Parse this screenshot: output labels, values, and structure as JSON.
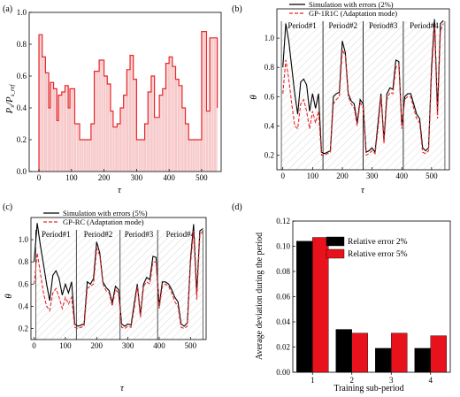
{
  "panels": {
    "a": {
      "tag": "(a)",
      "xlabel": "τ",
      "ylabel": "P",
      "ylabel_sub1": "s",
      "ylabel_mid": "/P",
      "ylabel_sub2": "s_ref"
    },
    "b": {
      "tag": "(b)",
      "xlabel": "τ",
      "ylabel": "θ"
    },
    "c": {
      "tag": "(c)",
      "xlabel": "τ",
      "ylabel": "θ"
    },
    "d": {
      "tag": "(d)",
      "xlabel": "Training sub-period",
      "ylabel": "Average deviation during the period"
    }
  },
  "chart_data": [
    {
      "id": "a",
      "type": "area",
      "xlim": [
        -30,
        560
      ],
      "ylim": [
        0.0,
        1.0
      ],
      "xticks": [
        0,
        100,
        200,
        300,
        400,
        500
      ],
      "yticks": [
        0.0,
        0.2,
        0.4,
        0.6,
        0.8,
        1.0
      ],
      "colors": {
        "line": "#e8282b",
        "fill": "#f7c9ca"
      },
      "steps": [
        [
          0,
          0.86
        ],
        [
          10,
          0.72
        ],
        [
          20,
          0.62
        ],
        [
          30,
          0.4
        ],
        [
          35,
          0.56
        ],
        [
          45,
          0.52
        ],
        [
          55,
          0.32
        ],
        [
          60,
          0.48
        ],
        [
          70,
          0.5
        ],
        [
          80,
          0.54
        ],
        [
          90,
          0.4
        ],
        [
          95,
          0.52
        ],
        [
          110,
          0.3
        ],
        [
          125,
          0.2
        ],
        [
          160,
          0.3
        ],
        [
          170,
          0.63
        ],
        [
          185,
          0.7
        ],
        [
          200,
          0.6
        ],
        [
          210,
          0.55
        ],
        [
          220,
          0.38
        ],
        [
          228,
          0.28
        ],
        [
          240,
          0.3
        ],
        [
          250,
          0.4
        ],
        [
          260,
          0.48
        ],
        [
          270,
          0.64
        ],
        [
          280,
          0.73
        ],
        [
          290,
          0.58
        ],
        [
          300,
          0.2
        ],
        [
          325,
          0.3
        ],
        [
          335,
          0.5
        ],
        [
          345,
          0.6
        ],
        [
          355,
          0.34
        ],
        [
          370,
          0.48
        ],
        [
          380,
          0.52
        ],
        [
          390,
          0.68
        ],
        [
          400,
          0.72
        ],
        [
          410,
          0.66
        ],
        [
          420,
          0.58
        ],
        [
          430,
          0.54
        ],
        [
          440,
          0.4
        ],
        [
          450,
          0.3
        ],
        [
          460,
          0.2
        ],
        [
          500,
          0.88
        ],
        [
          515,
          0.38
        ],
        [
          525,
          0.84
        ],
        [
          545,
          0.84
        ]
      ]
    },
    {
      "id": "b",
      "type": "line",
      "xlim": [
        -20,
        560
      ],
      "ylim": [
        0.1,
        1.2
      ],
      "xticks": [
        0,
        100,
        200,
        300,
        400,
        500
      ],
      "yticks": [
        0.2,
        0.4,
        0.6,
        0.8,
        1.0
      ],
      "periods": [
        {
          "label": "Period#1",
          "start": -5,
          "end": 135
        },
        {
          "label": "Period#2",
          "start": 135,
          "end": 270
        },
        {
          "label": "Period#3",
          "start": 270,
          "end": 405
        },
        {
          "label": "Period#4",
          "start": 405,
          "end": 545
        }
      ],
      "series": [
        {
          "name": "Simulation with errors (2%)",
          "color": "#000000",
          "dash": false,
          "x": [
            0,
            10,
            20,
            30,
            40,
            50,
            60,
            70,
            80,
            90,
            100,
            110,
            120,
            130,
            140,
            150,
            160,
            170,
            180,
            190,
            200,
            210,
            220,
            230,
            240,
            250,
            260,
            270,
            280,
            290,
            300,
            310,
            320,
            330,
            340,
            350,
            360,
            370,
            380,
            390,
            400,
            410,
            420,
            430,
            440,
            450,
            460,
            470,
            480,
            490,
            500,
            510,
            520,
            530,
            540
          ],
          "y": [
            0.8,
            1.1,
            0.98,
            0.8,
            0.62,
            0.48,
            0.7,
            0.72,
            0.68,
            0.5,
            0.62,
            0.52,
            0.62,
            0.22,
            0.21,
            0.22,
            0.23,
            0.6,
            0.62,
            0.63,
            0.98,
            0.9,
            0.62,
            0.57,
            0.55,
            0.42,
            0.58,
            0.55,
            0.22,
            0.23,
            0.25,
            0.22,
            0.42,
            0.62,
            0.3,
            0.62,
            0.66,
            0.65,
            0.85,
            0.84,
            0.4,
            0.6,
            0.62,
            0.62,
            0.55,
            0.48,
            0.45,
            0.25,
            0.23,
            0.25,
            0.8,
            1.13,
            0.5,
            1.1,
            1.12
          ]
        },
        {
          "name": "GP-1R1C (Adaptation mode)",
          "color": "#e8282b",
          "dash": true,
          "x": [
            0,
            10,
            20,
            30,
            40,
            50,
            60,
            70,
            80,
            90,
            100,
            110,
            120,
            130,
            140,
            150,
            160,
            170,
            180,
            190,
            200,
            210,
            220,
            230,
            240,
            250,
            260,
            270,
            280,
            290,
            300,
            310,
            320,
            330,
            340,
            350,
            360,
            370,
            380,
            390,
            400,
            410,
            420,
            430,
            440,
            450,
            460,
            470,
            480,
            490,
            500,
            510,
            520,
            530,
            540
          ],
          "y": [
            0.62,
            0.85,
            0.72,
            0.55,
            0.4,
            0.38,
            0.55,
            0.58,
            0.5,
            0.38,
            0.5,
            0.42,
            0.5,
            0.2,
            0.2,
            0.21,
            0.22,
            0.55,
            0.58,
            0.6,
            0.92,
            0.88,
            0.6,
            0.55,
            0.52,
            0.4,
            0.56,
            0.52,
            0.2,
            0.21,
            0.23,
            0.21,
            0.38,
            0.6,
            0.28,
            0.58,
            0.63,
            0.62,
            0.8,
            0.82,
            0.38,
            0.58,
            0.6,
            0.6,
            0.52,
            0.45,
            0.42,
            0.22,
            0.21,
            0.23,
            0.75,
            1.08,
            0.45,
            1.05,
            1.1
          ]
        }
      ]
    },
    {
      "id": "c",
      "type": "line",
      "xlim": [
        -10,
        550
      ],
      "ylim": [
        0.1,
        1.2
      ],
      "xticks": [
        0,
        100,
        200,
        300,
        400,
        500
      ],
      "yticks": [
        0.2,
        0.4,
        0.6,
        0.8,
        1.0
      ],
      "periods": [
        {
          "label": "Period#1",
          "start": 5,
          "end": 135
        },
        {
          "label": "Period#2",
          "start": 135,
          "end": 275
        },
        {
          "label": "Period#3",
          "start": 275,
          "end": 395
        },
        {
          "label": "Period#4",
          "start": 395,
          "end": 540
        }
      ],
      "series": [
        {
          "name": "Simulation with errors (5%)",
          "color": "#000000",
          "dash": false,
          "x": [
            0,
            10,
            20,
            30,
            40,
            50,
            60,
            70,
            80,
            90,
            100,
            110,
            120,
            130,
            140,
            150,
            160,
            170,
            180,
            190,
            200,
            210,
            220,
            230,
            240,
            250,
            260,
            270,
            280,
            290,
            300,
            310,
            320,
            330,
            340,
            350,
            360,
            370,
            380,
            390,
            400,
            410,
            420,
            430,
            440,
            450,
            460,
            470,
            480,
            490,
            500,
            510,
            520,
            530,
            540
          ],
          "y": [
            0.8,
            1.15,
            0.95,
            0.78,
            0.6,
            0.45,
            0.68,
            0.72,
            0.65,
            0.5,
            0.6,
            0.52,
            0.62,
            0.24,
            0.22,
            0.23,
            0.24,
            0.62,
            0.6,
            0.65,
            0.98,
            0.88,
            0.62,
            0.57,
            0.54,
            0.43,
            0.58,
            0.55,
            0.24,
            0.22,
            0.24,
            0.23,
            0.42,
            0.6,
            0.32,
            0.6,
            0.66,
            0.64,
            0.85,
            0.84,
            0.4,
            0.62,
            0.62,
            0.6,
            0.55,
            0.48,
            0.44,
            0.24,
            0.22,
            0.25,
            0.82,
            1.14,
            0.52,
            1.08,
            1.1
          ]
        },
        {
          "name": "GP-RC (Adaptation mode)",
          "color": "#e8282b",
          "dash": true,
          "x": [
            0,
            10,
            20,
            30,
            40,
            50,
            60,
            70,
            80,
            90,
            100,
            110,
            120,
            130,
            140,
            150,
            160,
            170,
            180,
            190,
            200,
            210,
            220,
            230,
            240,
            250,
            260,
            270,
            280,
            290,
            300,
            310,
            320,
            330,
            340,
            350,
            360,
            370,
            380,
            390,
            400,
            410,
            420,
            430,
            440,
            450,
            460,
            470,
            480,
            490,
            500,
            510,
            520,
            530,
            540
          ],
          "y": [
            0.6,
            0.88,
            0.7,
            0.52,
            0.4,
            0.36,
            0.52,
            0.56,
            0.48,
            0.38,
            0.48,
            0.42,
            0.48,
            0.21,
            0.2,
            0.21,
            0.22,
            0.56,
            0.58,
            0.6,
            0.92,
            0.86,
            0.6,
            0.54,
            0.52,
            0.4,
            0.55,
            0.52,
            0.21,
            0.2,
            0.22,
            0.21,
            0.38,
            0.58,
            0.3,
            0.58,
            0.62,
            0.6,
            0.8,
            0.8,
            0.38,
            0.58,
            0.6,
            0.58,
            0.52,
            0.44,
            0.4,
            0.21,
            0.2,
            0.22,
            0.78,
            1.08,
            0.46,
            1.04,
            1.08
          ]
        }
      ]
    },
    {
      "id": "d",
      "type": "bar",
      "categories": [
        "1",
        "2",
        "3",
        "4"
      ],
      "ylim": [
        0.0,
        0.12
      ],
      "yticks": [
        0.0,
        0.02,
        0.04,
        0.06,
        0.08,
        0.1,
        0.12
      ],
      "legend_position": "top-right",
      "series": [
        {
          "name": "Relative error 2%",
          "color": "#000000",
          "values": [
            0.104,
            0.034,
            0.019,
            0.019
          ]
        },
        {
          "name": "Relative error 5%",
          "color": "#e8121c",
          "values": [
            0.107,
            0.031,
            0.031,
            0.029
          ]
        }
      ]
    }
  ]
}
